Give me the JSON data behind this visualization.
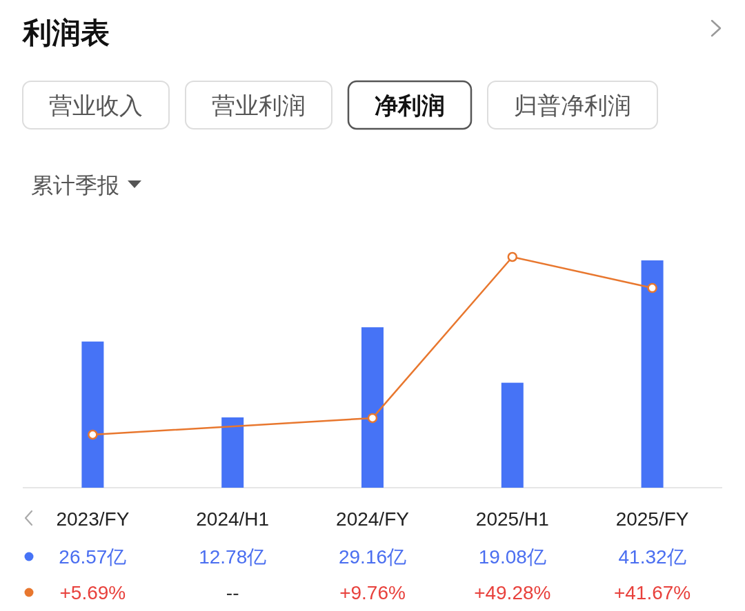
{
  "chart_data": {
    "type": "bar",
    "title": "利润表",
    "annotations": [
      "营业收入",
      "营业利润",
      "净利润",
      "归普净利润",
      "累计季报"
    ],
    "categories": [
      "2023/FY",
      "2024/H1",
      "2024/FY",
      "2025/H1",
      "2025/FY"
    ],
    "series": [
      {
        "color": "#4673f6",
        "values": [
          26.57,
          12.78,
          29.16,
          19.08,
          41.32
        ],
        "value_labels": [
          "26.57亿",
          "12.78亿",
          "29.16亿",
          "19.08亿",
          "41.32亿"
        ]
      },
      {
        "type": "line",
        "axis": "y2",
        "color": "#e8772e",
        "values": [
          5.69,
          null,
          9.76,
          49.28,
          41.67
        ],
        "value_labels": [
          "+5.69%",
          "--",
          "+9.76%",
          "+49.28%",
          "+41.67%"
        ]
      }
    ],
    "tick_labels": "x",
    "marker": "circle"
  }
}
